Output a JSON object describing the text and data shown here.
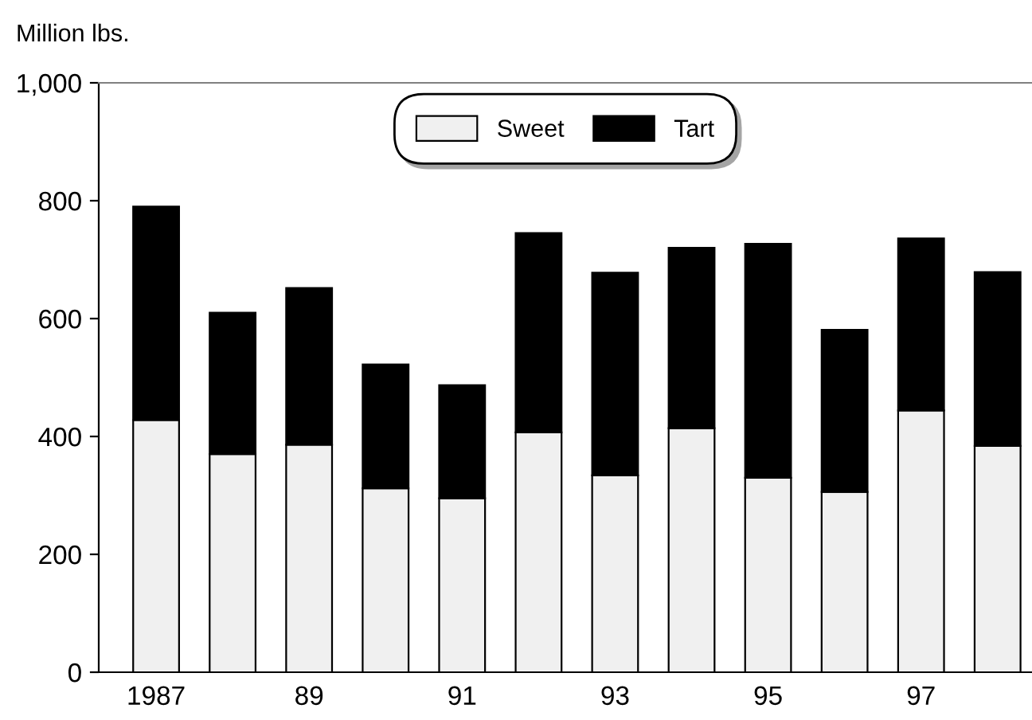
{
  "chart_data": {
    "type": "bar",
    "ylabel": "Million lbs.",
    "stacked": true,
    "categories": [
      "1987",
      null,
      "89",
      null,
      "91",
      null,
      "93",
      null,
      "95",
      null,
      "97",
      null
    ],
    "series": [
      {
        "name": "Sweet",
        "color": "#f0f0f0",
        "values": [
          428,
          370,
          386,
          312,
          295,
          407,
          334,
          414,
          330,
          306,
          444,
          384
        ]
      },
      {
        "name": "Tart",
        "color": "#000000",
        "values": [
          362,
          240,
          266,
          210,
          192,
          338,
          344,
          306,
          397,
          275,
          292,
          295
        ]
      }
    ],
    "ylim": [
      0,
      1000
    ],
    "yticks": [
      0,
      200,
      400,
      600,
      {
        "value": 800,
        "label": "800"
      },
      {
        "value": 1000,
        "label": "1,000"
      }
    ],
    "grid": false,
    "legend": "top"
  }
}
